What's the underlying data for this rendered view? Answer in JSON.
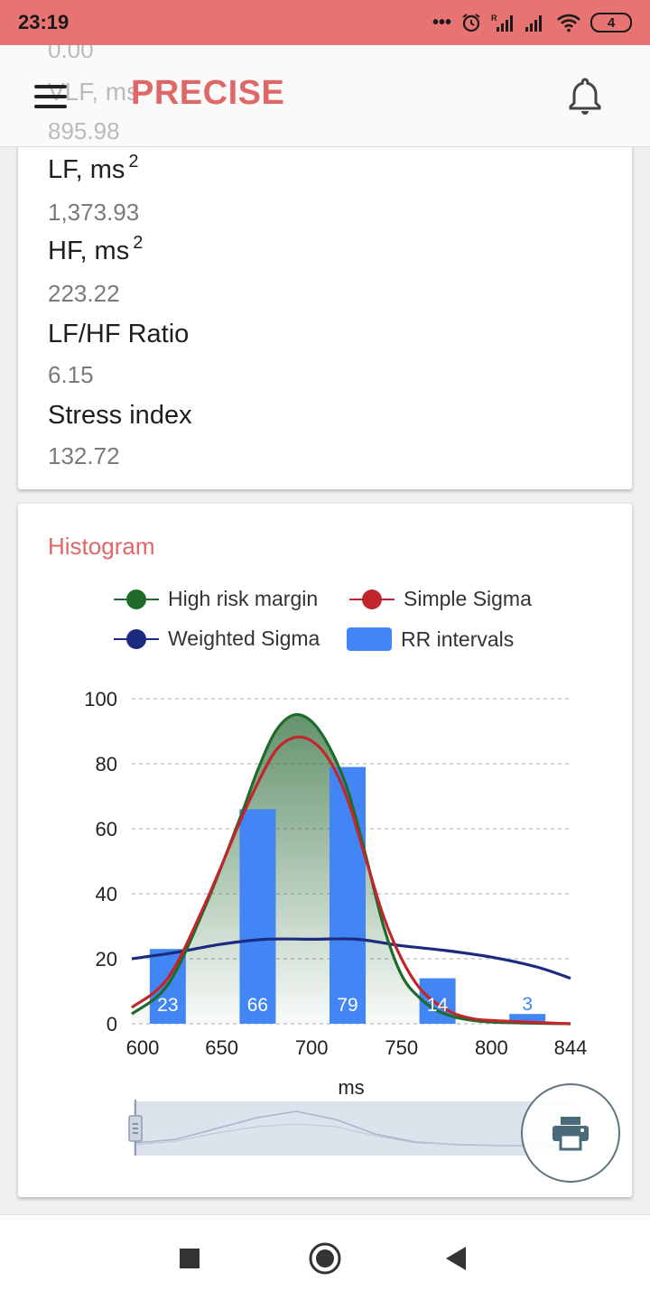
{
  "status_bar": {
    "time": "23:19",
    "dots": "•••",
    "battery": "4",
    "icons": [
      "alarm-icon",
      "signal-roaming-icon",
      "signal-icon",
      "wifi-icon",
      "battery-icon"
    ]
  },
  "app_bar": {
    "title": "PRECISE",
    "ghost_label": "VLF, ms",
    "ghost_value_top": "0.00",
    "ghost_value": "895.98"
  },
  "metrics": [
    {
      "label": "LF, ms",
      "sup": "2",
      "value": "1,373.93"
    },
    {
      "label": "HF, ms",
      "sup": "2",
      "value": "223.22"
    },
    {
      "label": "LF/HF Ratio",
      "sup": "",
      "value": "6.15"
    },
    {
      "label": "Stress index",
      "sup": "",
      "value": "132.72"
    }
  ],
  "histogram": {
    "title": "Histogram",
    "legend": {
      "high_risk": "High risk margin",
      "simple_sigma": "Simple Sigma",
      "weighted_sigma": "Weighted Sigma",
      "rr_intervals": "RR intervals"
    }
  },
  "colors": {
    "accent": "#e06767",
    "status_bar": "#e87373",
    "high_risk": "#1e6b2a",
    "simple_sigma": "#c0262a",
    "weighted_sigma": "#1c2a80",
    "rr_intervals": "#4285f4"
  },
  "chart_data": {
    "type": "bar",
    "xlabel": "ms",
    "ylabel": "",
    "xlim": [
      600,
      844
    ],
    "ylim": [
      0,
      100
    ],
    "x_ticks": [
      600,
      650,
      700,
      750,
      800,
      844
    ],
    "y_ticks": [
      0,
      20,
      40,
      60,
      80,
      100
    ],
    "grid": true,
    "legend_position": "top",
    "bars": {
      "name": "RR intervals",
      "x": [
        620,
        670,
        720,
        770,
        820
      ],
      "values": [
        23,
        66,
        79,
        14,
        3
      ]
    },
    "series": [
      {
        "name": "High risk margin",
        "x": [
          600,
          620,
          640,
          660,
          670,
          680,
          690,
          700,
          710,
          720,
          730,
          740,
          750,
          760,
          770,
          780,
          790,
          800,
          820,
          844
        ],
        "values": [
          3,
          12,
          35,
          63,
          78,
          90,
          95,
          93,
          85,
          72,
          52,
          30,
          15,
          8,
          4,
          2,
          1,
          0.5,
          0.2,
          0
        ]
      },
      {
        "name": "Simple Sigma",
        "x": [
          600,
          620,
          640,
          660,
          670,
          680,
          690,
          700,
          710,
          720,
          730,
          740,
          750,
          760,
          770,
          780,
          790,
          800,
          820,
          844
        ],
        "values": [
          5,
          14,
          36,
          62,
          74,
          84,
          88,
          87,
          81,
          69,
          51,
          33,
          20,
          11,
          6,
          3,
          1.5,
          1,
          0.5,
          0
        ]
      },
      {
        "name": "Weighted Sigma",
        "x": [
          600,
          625,
          650,
          675,
          700,
          725,
          750,
          775,
          800,
          825,
          844
        ],
        "values": [
          20,
          22,
          24.5,
          26,
          26,
          26,
          24,
          22.5,
          20.5,
          17.5,
          14
        ]
      }
    ]
  }
}
